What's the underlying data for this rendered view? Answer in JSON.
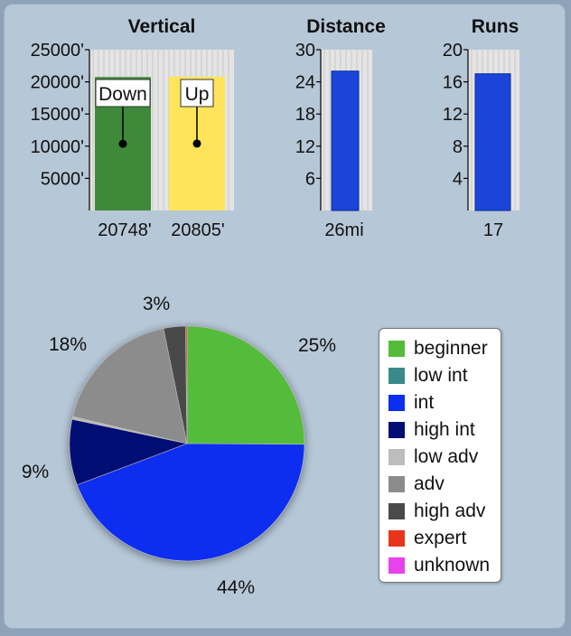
{
  "chart_data": [
    {
      "type": "bar",
      "title": "Vertical",
      "categories": [
        "Down",
        "Up"
      ],
      "values": [
        20748,
        20805
      ],
      "value_labels": [
        "20748'",
        "20805'"
      ],
      "ylim": [
        0,
        25000
      ],
      "yticks": [
        "25000'",
        "20000'",
        "15000'",
        "10000'",
        "5000'"
      ],
      "grid": true,
      "colors": [
        "#3f8a3a",
        "#fde45a"
      ]
    },
    {
      "type": "bar",
      "title": "Distance",
      "values": [
        26
      ],
      "value_labels": [
        "26mi"
      ],
      "ylim": [
        0,
        30
      ],
      "yticks": [
        "30",
        "24",
        "18",
        "12",
        "6"
      ],
      "grid": true,
      "colors": [
        "#1a45d8"
      ]
    },
    {
      "type": "bar",
      "title": "Runs",
      "values": [
        17
      ],
      "value_labels": [
        "17"
      ],
      "ylim": [
        0,
        20
      ],
      "yticks": [
        "20",
        "16",
        "12",
        "8",
        "4"
      ],
      "grid": true,
      "colors": [
        "#1a45d8"
      ]
    },
    {
      "type": "pie",
      "legend_position": "right",
      "slices": [
        {
          "label": "beginner",
          "value": 25,
          "display": "25%",
          "color": "#55bb3a"
        },
        {
          "label": "low int",
          "value": 0,
          "display": "",
          "color": "#3a8a8a"
        },
        {
          "label": "int",
          "value": 44,
          "display": "44%",
          "color": "#0b2ff0"
        },
        {
          "label": "high int",
          "value": 9,
          "display": "9%",
          "color": "#020e73"
        },
        {
          "label": "low adv",
          "value": 0.4,
          "display": "",
          "color": "#bdbdbd"
        },
        {
          "label": "adv",
          "value": 18,
          "display": "18%",
          "color": "#8c8c8c"
        },
        {
          "label": "high adv",
          "value": 3,
          "display": "3%",
          "color": "#4a4a4a"
        },
        {
          "label": "expert",
          "value": 0.2,
          "display": "",
          "color": "#e8341c"
        },
        {
          "label": "unknown",
          "value": 0,
          "display": "",
          "color": "#e743ea"
        }
      ]
    }
  ]
}
